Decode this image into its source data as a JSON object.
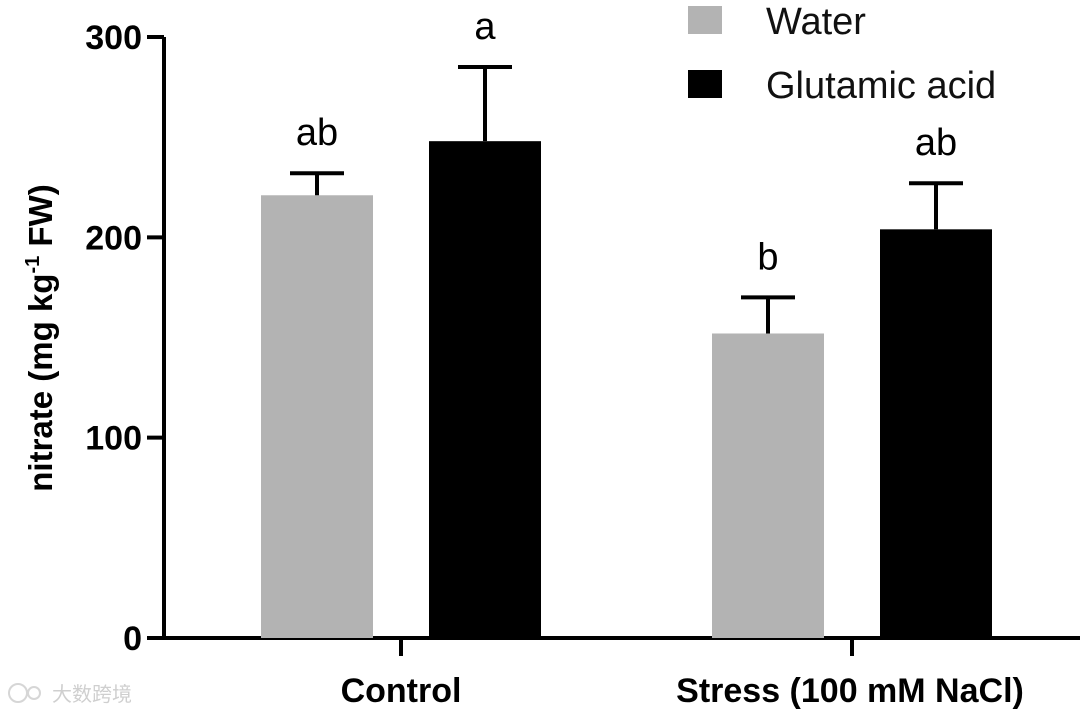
{
  "chart_data": {
    "type": "bar",
    "title": "",
    "xlabel": "",
    "ylabel": "nitrate (mg kg",
    "ylabel_sup": "-1",
    "ylabel_suffix": " FW)",
    "ylim": [
      0,
      300
    ],
    "yticks": [
      "0",
      "100",
      "200",
      "300"
    ],
    "ytick_values": [
      0,
      100,
      200,
      300
    ],
    "categories": [
      "Control",
      "Stress (100 mM NaCl)"
    ],
    "series": [
      {
        "name": "Water",
        "color": "#b3b3b3",
        "values": [
          221,
          152
        ],
        "errors": [
          11,
          18
        ],
        "sig": [
          "ab",
          "b"
        ]
      },
      {
        "name": "Glutamic acid",
        "color": "#000000",
        "values": [
          248,
          204
        ],
        "errors": [
          37,
          23
        ],
        "sig": [
          "a",
          "ab"
        ]
      }
    ],
    "legend": "top-right"
  },
  "watermark": {
    "text": "大数跨境"
  }
}
